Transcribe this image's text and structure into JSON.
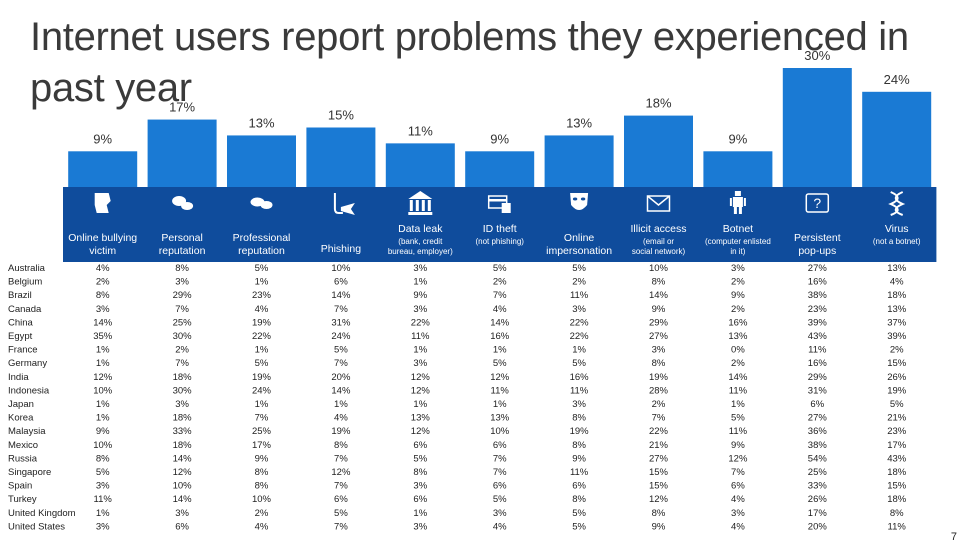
{
  "title": "Internet users report problems they experienced in past year",
  "page_number": "7",
  "colors": {
    "bar": "#1a7ad4",
    "panel": "#0f4c9c",
    "text": "#222222",
    "icon": "#ffffff"
  },
  "chart_data": {
    "type": "bar",
    "title": "Internet users report problems they experienced in past year",
    "ylim": [
      0,
      30
    ],
    "grid": false,
    "categories": [
      {
        "label": "Online bullying victim",
        "sub": "",
        "icon": "bullying-icon",
        "value": 9,
        "value_label": "9%"
      },
      {
        "label": "Personal reputation",
        "sub": "",
        "icon": "personal-reputation-icon",
        "value": 17,
        "value_label": "17%"
      },
      {
        "label": "Professional reputation",
        "sub": "",
        "icon": "professional-reputation-icon",
        "value": 13,
        "value_label": "13%"
      },
      {
        "label": "Phishing",
        "sub": "",
        "icon": "fishing-hook-icon",
        "value": 15,
        "value_label": "15%"
      },
      {
        "label": "Data leak",
        "sub": "(bank, credit bureau, employer)",
        "icon": "bank-icon",
        "value": 11,
        "value_label": "11%"
      },
      {
        "label": "ID theft",
        "sub": "(not phishing)",
        "icon": "credit-card-icon",
        "value": 9,
        "value_label": "9%"
      },
      {
        "label": "Online impersonation",
        "sub": "",
        "icon": "mask-icon",
        "value": 13,
        "value_label": "13%"
      },
      {
        "label": "Illicit access",
        "sub": "(email or social network)",
        "icon": "envelope-icon",
        "value": 18,
        "value_label": "18%"
      },
      {
        "label": "Botnet",
        "sub": "(computer enlisted in it)",
        "icon": "robot-icon",
        "value": 9,
        "value_label": "9%"
      },
      {
        "label": "Persistent pop-ups",
        "sub": "",
        "icon": "popup-icon",
        "value": 30,
        "value_label": "30%"
      },
      {
        "label": "Virus",
        "sub": "(not a botnet)",
        "icon": "virus-icon",
        "value": 24,
        "value_label": "24%"
      }
    ],
    "table": {
      "countries": [
        "Australia",
        "Belgium",
        "Brazil",
        "Canada",
        "China",
        "Egypt",
        "France",
        "Germany",
        "India",
        "Indonesia",
        "Japan",
        "Korea",
        "Malaysia",
        "Mexico",
        "Russia",
        "Singapore",
        "Spain",
        "Turkey",
        "United Kingdom",
        "United States"
      ],
      "rows": [
        [
          "4%",
          "8%",
          "5%",
          "10%",
          "3%",
          "5%",
          "5%",
          "10%",
          "3%",
          "27%",
          "13%"
        ],
        [
          "2%",
          "3%",
          "1%",
          "6%",
          "1%",
          "2%",
          "2%",
          "8%",
          "2%",
          "16%",
          "4%"
        ],
        [
          "8%",
          "29%",
          "23%",
          "14%",
          "9%",
          "7%",
          "11%",
          "14%",
          "9%",
          "38%",
          "18%"
        ],
        [
          "3%",
          "7%",
          "4%",
          "7%",
          "3%",
          "4%",
          "3%",
          "9%",
          "2%",
          "23%",
          "13%"
        ],
        [
          "14%",
          "25%",
          "19%",
          "31%",
          "22%",
          "14%",
          "22%",
          "29%",
          "16%",
          "39%",
          "37%"
        ],
        [
          "35%",
          "30%",
          "22%",
          "24%",
          "11%",
          "16%",
          "22%",
          "27%",
          "13%",
          "43%",
          "39%"
        ],
        [
          "1%",
          "2%",
          "1%",
          "5%",
          "1%",
          "1%",
          "1%",
          "3%",
          "0%",
          "11%",
          "2%"
        ],
        [
          "1%",
          "7%",
          "5%",
          "7%",
          "3%",
          "5%",
          "5%",
          "8%",
          "2%",
          "16%",
          "15%"
        ],
        [
          "12%",
          "18%",
          "19%",
          "20%",
          "12%",
          "12%",
          "16%",
          "19%",
          "14%",
          "29%",
          "26%"
        ],
        [
          "10%",
          "30%",
          "24%",
          "14%",
          "12%",
          "11%",
          "11%",
          "28%",
          "11%",
          "31%",
          "19%"
        ],
        [
          "1%",
          "3%",
          "1%",
          "1%",
          "1%",
          "1%",
          "3%",
          "2%",
          "1%",
          "6%",
          "5%"
        ],
        [
          "1%",
          "18%",
          "7%",
          "4%",
          "13%",
          "13%",
          "8%",
          "7%",
          "5%",
          "27%",
          "21%"
        ],
        [
          "9%",
          "33%",
          "25%",
          "19%",
          "12%",
          "10%",
          "19%",
          "22%",
          "11%",
          "36%",
          "23%"
        ],
        [
          "10%",
          "18%",
          "17%",
          "8%",
          "6%",
          "6%",
          "8%",
          "21%",
          "9%",
          "38%",
          "17%"
        ],
        [
          "8%",
          "14%",
          "9%",
          "7%",
          "5%",
          "7%",
          "9%",
          "27%",
          "12%",
          "54%",
          "43%"
        ],
        [
          "5%",
          "12%",
          "8%",
          "12%",
          "8%",
          "7%",
          "11%",
          "15%",
          "7%",
          "25%",
          "18%"
        ],
        [
          "3%",
          "10%",
          "8%",
          "7%",
          "3%",
          "6%",
          "6%",
          "15%",
          "6%",
          "33%",
          "15%"
        ],
        [
          "11%",
          "14%",
          "10%",
          "6%",
          "6%",
          "5%",
          "8%",
          "12%",
          "4%",
          "26%",
          "18%"
        ],
        [
          "1%",
          "3%",
          "2%",
          "5%",
          "1%",
          "3%",
          "5%",
          "8%",
          "3%",
          "17%",
          "8%"
        ],
        [
          "3%",
          "6%",
          "4%",
          "7%",
          "3%",
          "4%",
          "5%",
          "9%",
          "4%",
          "20%",
          "11%"
        ]
      ]
    }
  }
}
